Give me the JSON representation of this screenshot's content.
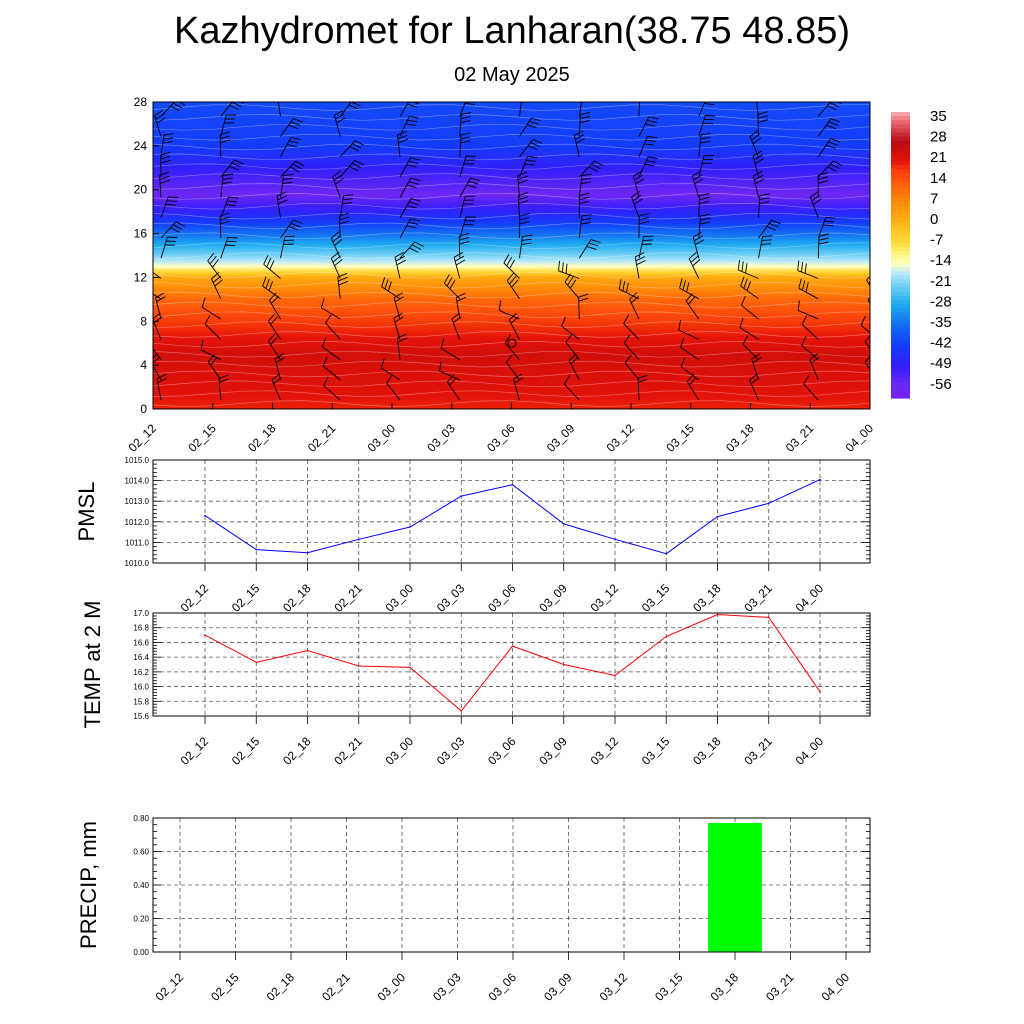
{
  "title": "Kazhydromet for Lanharan(38.75 48.85)",
  "subtitle": "02 May 2025",
  "time_labels": [
    "02_12",
    "02_15",
    "02_18",
    "02_21",
    "03_00",
    "03_03",
    "03_06",
    "03_09",
    "03_12",
    "03_15",
    "03_18",
    "03_21",
    "04_00"
  ],
  "chart_data": [
    {
      "type": "heatmap",
      "title": "",
      "x_categories": [
        "02_12",
        "02_15",
        "02_18",
        "02_21",
        "03_00",
        "03_03",
        "03_06",
        "03_09",
        "03_12",
        "03_15",
        "03_18",
        "03_21",
        "04_00"
      ],
      "y_ticks": [
        "0",
        "4",
        "8",
        "12",
        "16",
        "20",
        "24",
        "28"
      ],
      "ylim": [
        0,
        28
      ],
      "colorbar_labels": [
        "35",
        "28",
        "21",
        "14",
        "7",
        "0",
        "-7",
        "-14",
        "-21",
        "-28",
        "-35",
        "-42",
        "-49",
        "-56"
      ],
      "colorbar_range": [
        -60,
        38
      ],
      "temperature_profile_by_level": [
        {
          "level": 0,
          "value": 20
        },
        {
          "level": 2,
          "value": 22
        },
        {
          "level": 5,
          "value": 24
        },
        {
          "level": 8,
          "value": 18
        },
        {
          "level": 10,
          "value": 12
        },
        {
          "level": 12,
          "value": 2
        },
        {
          "level": 13,
          "value": -14
        },
        {
          "level": 15,
          "value": -28
        },
        {
          "level": 17,
          "value": -42
        },
        {
          "level": 19.5,
          "value": -56
        },
        {
          "level": 21,
          "value": -52
        },
        {
          "level": 24,
          "value": -42
        },
        {
          "level": 28,
          "value": -40
        }
      ],
      "wind_barbs": "present",
      "grid": false
    },
    {
      "type": "line",
      "ylabel": "PMSL",
      "categories": [
        "02_12",
        "02_15",
        "02_18",
        "02_21",
        "03_00",
        "03_03",
        "03_06",
        "03_09",
        "03_12",
        "03_15",
        "03_18",
        "03_21",
        "04_00"
      ],
      "values": [
        1012.3,
        1010.65,
        1010.5,
        1011.15,
        1011.75,
        1013.25,
        1013.8,
        1011.9,
        1011.15,
        1010.45,
        1012.25,
        1012.9,
        1014.05
      ],
      "ylim": [
        1010.0,
        1015.0
      ],
      "y_ticks": [
        "1010.0",
        "1011.0",
        "1012.0",
        "1013.0",
        "1014.0",
        "1015.0"
      ],
      "color": "#0000ff",
      "grid": true
    },
    {
      "type": "line",
      "ylabel": "TEMP at 2 M",
      "categories": [
        "02_12",
        "02_15",
        "02_18",
        "02_21",
        "03_00",
        "03_03",
        "03_06",
        "03_09",
        "03_12",
        "03_15",
        "03_18",
        "03_21",
        "04_00"
      ],
      "values": [
        16.7,
        16.33,
        16.49,
        16.28,
        16.26,
        15.67,
        16.55,
        16.3,
        16.15,
        16.68,
        16.98,
        16.94,
        15.93
      ],
      "ylim": [
        15.6,
        17.0
      ],
      "y_ticks": [
        "15.6",
        "15.8",
        "16.0",
        "16.2",
        "16.4",
        "16.6",
        "16.8",
        "17.0"
      ],
      "color": "#ff0000",
      "grid": true
    },
    {
      "type": "bar",
      "ylabel": "PRECIP, mm",
      "categories": [
        "02_12",
        "02_15",
        "02_18",
        "02_21",
        "03_00",
        "03_03",
        "03_06",
        "03_09",
        "03_12",
        "03_15",
        "03_18",
        "03_21",
        "04_00"
      ],
      "values": [
        0,
        0,
        0,
        0,
        0,
        0,
        0,
        0,
        0,
        0,
        0.77,
        0,
        0
      ],
      "ylim": [
        0,
        0.8
      ],
      "y_ticks": [
        "0.00",
        "0.20",
        "0.40",
        "0.60",
        "0.80"
      ],
      "color": "#00ff00",
      "grid": true
    }
  ]
}
